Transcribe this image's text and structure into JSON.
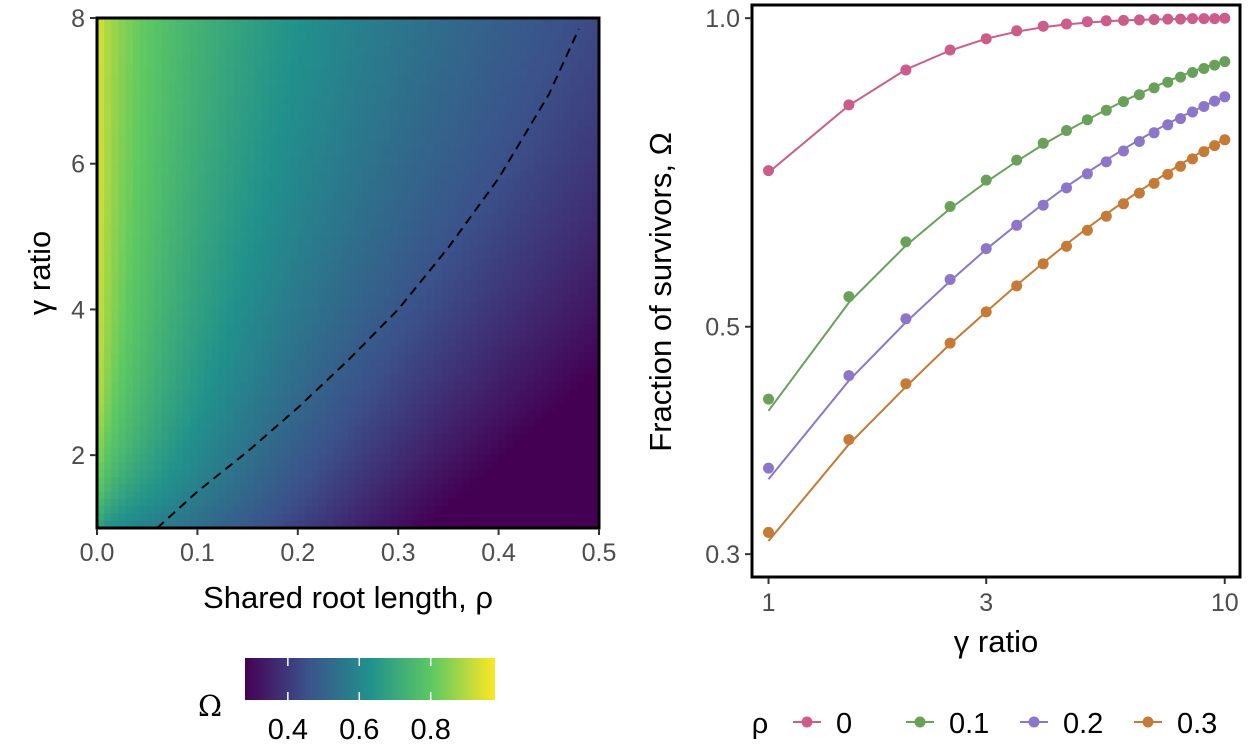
{
  "chart_data": [
    {
      "type": "heatmap",
      "xlabel": "Shared root length, ρ",
      "ylabel": "γ ratio",
      "xlim": [
        0.0,
        0.5
      ],
      "ylim": [
        1,
        8
      ],
      "x_ticks": [
        "0.0",
        "0.1",
        "0.2",
        "0.3",
        "0.4",
        "0.5"
      ],
      "y_ticks": [
        "2",
        "4",
        "6",
        "8"
      ],
      "colorbar": {
        "title": "Ω",
        "range": [
          0.28,
          0.98
        ],
        "ticks": [
          "0.4",
          "0.6",
          "0.8"
        ],
        "colormap": [
          "#440154",
          "#3b528b",
          "#21918c",
          "#5ec962",
          "#fde725"
        ]
      },
      "contour": {
        "style": "dashed",
        "x": [
          0.06,
          0.1,
          0.15,
          0.2,
          0.25,
          0.3,
          0.35,
          0.4,
          0.45,
          0.48
        ],
        "y": [
          1.0,
          1.5,
          2.05,
          2.65,
          3.3,
          4.0,
          4.85,
          5.8,
          6.95,
          7.85
        ]
      }
    },
    {
      "type": "line",
      "xlabel": "γ ratio",
      "ylabel": "Fraction of survivors, Ω",
      "xscale": "log",
      "yscale": "log",
      "xlim": [
        0.92,
        10.8
      ],
      "ylim": [
        0.285,
        1.03
      ],
      "x_ticks": [
        "1",
        "3",
        "10"
      ],
      "y_ticks": [
        "0.3",
        "0.5",
        "1.0"
      ],
      "legend": {
        "title": "ρ",
        "position": "bottom"
      },
      "x": [
        1.0,
        1.5,
        2.0,
        2.5,
        3.0,
        3.5,
        4.0,
        4.5,
        5.0,
        5.5,
        6.0,
        6.5,
        7.0,
        7.5,
        8.0,
        8.5,
        9.0,
        9.5,
        10.0
      ],
      "series": [
        {
          "name": "0",
          "color": "#cc5c8a",
          "points": [
            0.71,
            0.823,
            0.89,
            0.931,
            0.955,
            0.972,
            0.982,
            0.987,
            0.992,
            0.994,
            0.995,
            0.996,
            0.997,
            0.998,
            0.998,
            0.999,
            0.999,
            0.999,
            1.0
          ],
          "curve": [
            0.707,
            0.822,
            0.891,
            0.93,
            0.955,
            0.97,
            0.98,
            0.986,
            0.99,
            0.993,
            0.995,
            0.996,
            0.997,
            0.998,
            0.998,
            0.999,
            0.999,
            0.999,
            1.0
          ]
        },
        {
          "name": "0.1",
          "color": "#6aa15a",
          "points": [
            0.425,
            0.535,
            0.605,
            0.655,
            0.695,
            0.727,
            0.755,
            0.777,
            0.796,
            0.813,
            0.829,
            0.842,
            0.855,
            0.866,
            0.876,
            0.885,
            0.893,
            0.9,
            0.907
          ],
          "curve": [
            0.414,
            0.528,
            0.6,
            0.652,
            0.692,
            0.725,
            0.753,
            0.776,
            0.796,
            0.814,
            0.83,
            0.844,
            0.857,
            0.868,
            0.878,
            0.887,
            0.895,
            0.902,
            0.908
          ]
        },
        {
          "name": "0.2",
          "color": "#8d76c9",
          "points": [
            0.364,
            0.448,
            0.509,
            0.556,
            0.596,
            0.628,
            0.657,
            0.683,
            0.705,
            0.724,
            0.742,
            0.758,
            0.773,
            0.787,
            0.798,
            0.81,
            0.82,
            0.83,
            0.838
          ],
          "curve": [
            0.355,
            0.443,
            0.505,
            0.554,
            0.595,
            0.629,
            0.659,
            0.685,
            0.707,
            0.727,
            0.745,
            0.761,
            0.776,
            0.789,
            0.801,
            0.811,
            0.821,
            0.83,
            0.838
          ]
        },
        {
          "name": "0.3",
          "color": "#c57a35",
          "points": [
            0.315,
            0.388,
            0.44,
            0.482,
            0.517,
            0.548,
            0.576,
            0.599,
            0.621,
            0.641,
            0.659,
            0.675,
            0.69,
            0.704,
            0.717,
            0.729,
            0.741,
            0.751,
            0.761
          ],
          "curve": [
            0.309,
            0.384,
            0.437,
            0.481,
            0.517,
            0.549,
            0.577,
            0.602,
            0.624,
            0.644,
            0.662,
            0.678,
            0.693,
            0.707,
            0.72,
            0.732,
            0.743,
            0.753,
            0.762
          ]
        }
      ]
    }
  ]
}
